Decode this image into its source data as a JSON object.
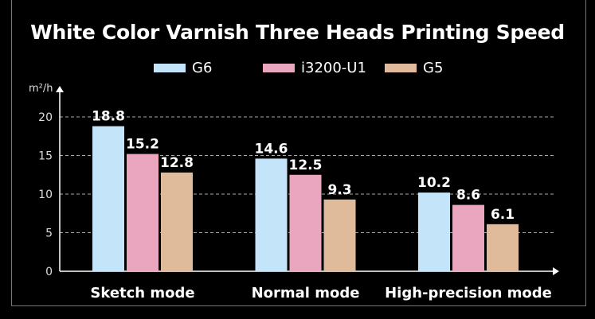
{
  "chart_data": {
    "type": "bar",
    "title": "White Color Varnish Three Heads Printing Speed",
    "ylabel": "m²/h",
    "xlabel": "",
    "categories": [
      "Sketch mode",
      "Normal mode",
      "High-precision mode"
    ],
    "series": [
      {
        "name": "G6",
        "color": "#c4e4fa",
        "values": [
          18.8,
          14.6,
          10.2
        ]
      },
      {
        "name": "i3200-U1",
        "color": "#eaa6bf",
        "values": [
          15.2,
          12.5,
          8.6
        ]
      },
      {
        "name": "G5",
        "color": "#dfbb9b",
        "values": [
          12.8,
          9.3,
          6.1
        ]
      }
    ],
    "ylim": [
      0,
      20
    ],
    "yticks": [
      0,
      5,
      10,
      15,
      20
    ],
    "grid": true,
    "legend": "top-center"
  }
}
